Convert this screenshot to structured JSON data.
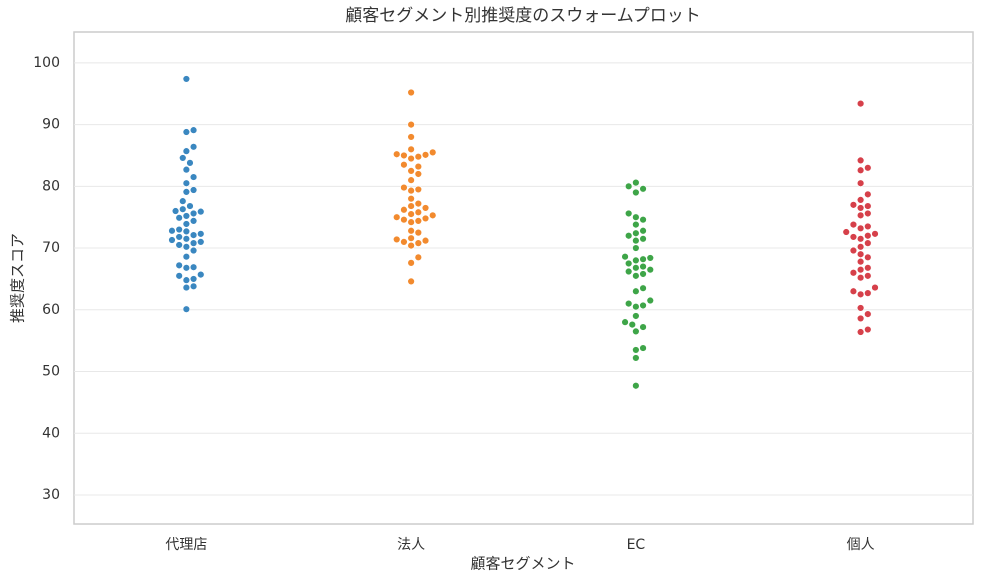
{
  "chart_data": {
    "type": "swarm",
    "title": "顧客セグメント別推奨度のスウォームプロット",
    "x_label": "顧客セグメント",
    "y_label": "推奨度スコア",
    "categories": [
      "代理店",
      "法人",
      "EC",
      "個人"
    ],
    "colors": [
      "#3a87c0",
      "#f28a2e",
      "#3ea548",
      "#d6404a"
    ],
    "values": [
      [
        97.4,
        89.1,
        88.8,
        86.4,
        85.7,
        84.6,
        83.8,
        82.7,
        81.5,
        80.5,
        79.4,
        79.1,
        77.6,
        76.8,
        76.3,
        76.0,
        75.9,
        75.6,
        75.2,
        74.9,
        74.4,
        73.9,
        73.0,
        72.8,
        72.7,
        72.3,
        72.1,
        71.8,
        71.5,
        71.3,
        71.0,
        70.8,
        70.5,
        70.2,
        69.6,
        68.6,
        67.2,
        66.9,
        66.8,
        65.7,
        65.5,
        65.0,
        64.8,
        63.8,
        63.6,
        60.1
      ],
      [
        95.2,
        90.0,
        88.0,
        86.0,
        85.5,
        85.2,
        85.1,
        85.0,
        84.8,
        84.5,
        83.5,
        83.2,
        82.5,
        82.0,
        81.0,
        79.8,
        79.5,
        79.3,
        78.0,
        77.2,
        76.8,
        76.5,
        76.2,
        75.8,
        75.5,
        75.3,
        75.0,
        74.8,
        74.6,
        74.4,
        74.2,
        72.8,
        72.5,
        71.6,
        71.4,
        71.2,
        71.0,
        70.8,
        70.4,
        68.5,
        67.6,
        64.6
      ],
      [
        80.6,
        80.0,
        79.6,
        79.0,
        75.6,
        75.0,
        74.6,
        73.8,
        72.8,
        72.4,
        72.0,
        71.5,
        71.2,
        70.0,
        68.6,
        68.4,
        68.2,
        68.0,
        67.5,
        67.0,
        66.8,
        66.5,
        66.2,
        65.8,
        65.5,
        63.5,
        63.0,
        61.5,
        61.0,
        60.7,
        60.5,
        59.0,
        58.0,
        57.6,
        57.2,
        56.5,
        53.8,
        53.5,
        52.2,
        47.7
      ],
      [
        93.4,
        84.2,
        83.0,
        82.6,
        80.5,
        78.7,
        77.8,
        77.0,
        76.8,
        76.5,
        75.6,
        75.3,
        73.8,
        73.5,
        73.2,
        72.6,
        72.3,
        72.0,
        71.8,
        71.5,
        70.8,
        70.2,
        69.6,
        69.0,
        68.5,
        67.8,
        66.8,
        66.5,
        66.0,
        65.5,
        65.2,
        63.6,
        63.0,
        62.7,
        62.5,
        60.3,
        59.3,
        58.6,
        56.8,
        56.4
      ]
    ],
    "ylim": [
      25.3,
      105
    ],
    "yticks": [
      30,
      40,
      50,
      60,
      70,
      80,
      90,
      100
    ],
    "grid": true
  }
}
